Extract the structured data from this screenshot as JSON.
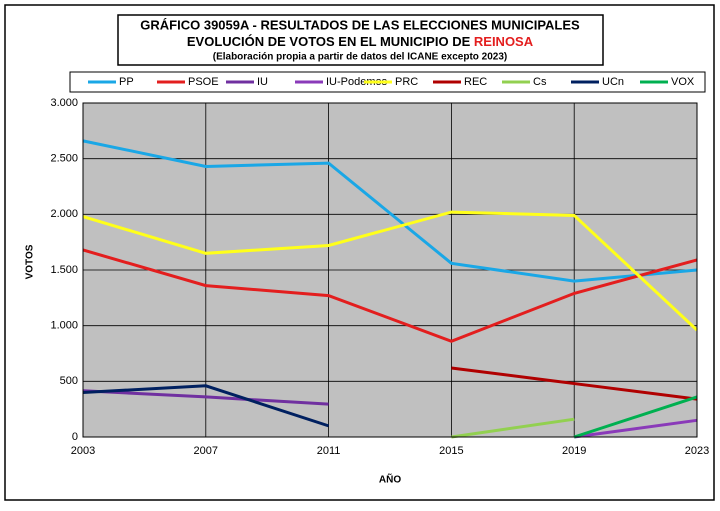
{
  "chart_data": {
    "type": "line",
    "title": "GRÁFICO 39059A - RESULTADOS DE LAS ELECCIONES MUNICIPALES",
    "subtitle": "EVOLUCIÓN DE VOTOS EN EL MUNICIPIO DE",
    "subtitle_highlight": "REINOSA",
    "note": "(Elaboración propia a partir de datos del ICANE excepto 2023)",
    "x_label": "AÑO",
    "y_label": "VOTOS",
    "x": [
      2003,
      2007,
      2011,
      2015,
      2019,
      2023
    ],
    "xlim": [
      2003,
      2023
    ],
    "xticks": [
      2003,
      2007,
      2011,
      2015,
      2019,
      2023
    ],
    "ylim": [
      0,
      3000
    ],
    "yticks": [
      {
        "value": 0,
        "label": "0"
      },
      {
        "value": 500,
        "label": "500"
      },
      {
        "value": 1000,
        "label": "1.000"
      },
      {
        "value": 1500,
        "label": "1.500"
      },
      {
        "value": 2000,
        "label": "2.000"
      },
      {
        "value": 2500,
        "label": "2.500"
      },
      {
        "value": 3000,
        "label": "3.000"
      }
    ],
    "grid": true,
    "series": [
      {
        "name": "PP",
        "color": "#1aa7e6",
        "values": [
          2660,
          2430,
          2460,
          1560,
          1400,
          1500
        ]
      },
      {
        "name": "PSOE",
        "color": "#e31e1e",
        "values": [
          1680,
          1360,
          1270,
          860,
          1290,
          1590
        ]
      },
      {
        "name": "IU",
        "color": "#7030a0",
        "values": [
          415,
          360,
          295,
          null,
          null,
          null
        ]
      },
      {
        "name": "IU-Podemos",
        "color": "#8a3ab9",
        "values": [
          null,
          null,
          null,
          null,
          0,
          150
        ]
      },
      {
        "name": "PRC",
        "color": "#ffff1a",
        "values": [
          1980,
          1650,
          1720,
          2020,
          1990,
          960
        ]
      },
      {
        "name": "REC",
        "color": "#b00000",
        "values": [
          null,
          null,
          null,
          620,
          480,
          340
        ]
      },
      {
        "name": "Cs",
        "color": "#92d050",
        "values": [
          null,
          null,
          null,
          0,
          160,
          null
        ]
      },
      {
        "name": "UCn",
        "color": "#002060",
        "values": [
          400,
          460,
          100,
          null,
          null,
          null
        ]
      },
      {
        "name": "VOX",
        "color": "#00b050",
        "values": [
          null,
          null,
          null,
          null,
          0,
          360
        ]
      }
    ]
  }
}
